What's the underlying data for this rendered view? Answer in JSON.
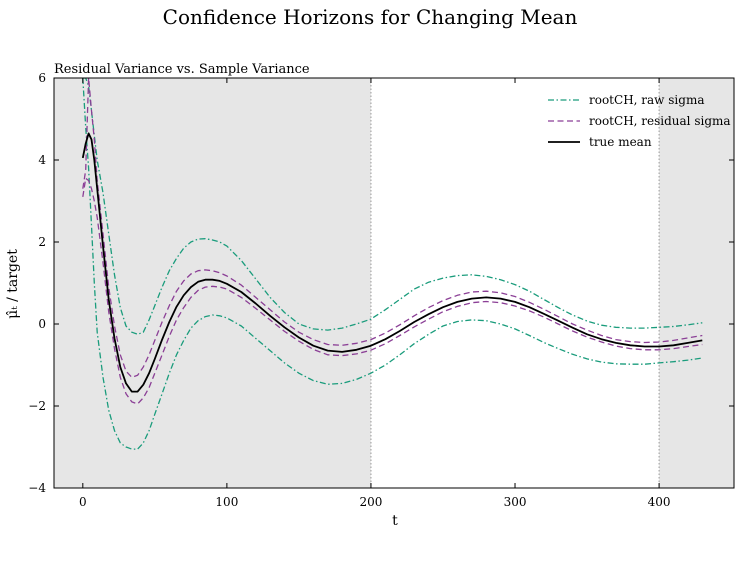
{
  "chart_data": {
    "type": "line",
    "title": "Confidence Horizons for Changing Mean",
    "subtitle": "Residual Variance vs. Sample Variance",
    "xlabel": "t",
    "ylabel": "μ̂ₜ / target",
    "xlim": [
      -20,
      452
    ],
    "ylim": [
      -4,
      6
    ],
    "xticks": [
      0,
      100,
      200,
      300,
      400
    ],
    "yticks": [
      -4,
      -2,
      0,
      2,
      4,
      6
    ],
    "xtick_labels": [
      "0",
      "100",
      "200",
      "300",
      "400"
    ],
    "ytick_labels": [
      "−4",
      "−2",
      "0",
      "2",
      "4",
      "6"
    ],
    "shaded_regions": [
      [
        -20,
        200
      ],
      [
        400,
        452
      ]
    ],
    "vlines": [
      200,
      400
    ],
    "grid": false,
    "legend_position": "top-right",
    "x": [
      0,
      2,
      4,
      6,
      8,
      10,
      14,
      18,
      22,
      26,
      30,
      34,
      38,
      42,
      46,
      50,
      55,
      60,
      65,
      70,
      75,
      80,
      85,
      90,
      95,
      100,
      110,
      120,
      130,
      140,
      150,
      160,
      170,
      180,
      190,
      200,
      210,
      220,
      230,
      240,
      250,
      260,
      270,
      280,
      290,
      300,
      310,
      320,
      330,
      340,
      350,
      360,
      370,
      380,
      390,
      400,
      410,
      420,
      430
    ],
    "series": [
      {
        "name": "rootCH, raw sigma",
        "color": "#1a9c7c",
        "dash": "dashdot",
        "parts": [
          {
            "label": "upper",
            "y": [
              6.0,
              6.0,
              5.8,
              5.2,
              4.6,
              4.0,
              3.2,
              2.2,
              1.2,
              0.4,
              -0.05,
              -0.2,
              -0.25,
              -0.2,
              0.1,
              0.45,
              0.9,
              1.3,
              1.6,
              1.85,
              2.0,
              2.07,
              2.08,
              2.05,
              2.0,
              1.9,
              1.55,
              1.1,
              0.65,
              0.28,
              0.0,
              -0.12,
              -0.15,
              -0.1,
              0.0,
              0.12,
              0.35,
              0.6,
              0.85,
              1.02,
              1.12,
              1.18,
              1.2,
              1.16,
              1.08,
              0.96,
              0.8,
              0.6,
              0.4,
              0.22,
              0.07,
              -0.03,
              -0.08,
              -0.1,
              -0.1,
              -0.08,
              -0.06,
              -0.02,
              0.03
            ]
          },
          {
            "label": "lower",
            "y": [
              6.0,
              4.8,
              3.8,
              2.4,
              1.0,
              -0.2,
              -1.3,
              -2.1,
              -2.6,
              -2.9,
              -3.0,
              -3.05,
              -3.05,
              -2.9,
              -2.6,
              -2.2,
              -1.7,
              -1.2,
              -0.75,
              -0.4,
              -0.1,
              0.08,
              0.18,
              0.22,
              0.2,
              0.15,
              -0.05,
              -0.35,
              -0.65,
              -0.95,
              -1.2,
              -1.38,
              -1.47,
              -1.45,
              -1.35,
              -1.2,
              -1.0,
              -0.75,
              -0.48,
              -0.25,
              -0.05,
              0.06,
              0.1,
              0.08,
              0.0,
              -0.12,
              -0.28,
              -0.45,
              -0.6,
              -0.74,
              -0.85,
              -0.93,
              -0.97,
              -0.98,
              -0.98,
              -0.95,
              -0.92,
              -0.88,
              -0.83
            ]
          }
        ]
      },
      {
        "name": "rootCH, residual sigma",
        "color": "#8b3f96",
        "dash": "dashed",
        "parts": [
          {
            "label": "upper",
            "y": [
              3.3,
              3.75,
              6.0,
              5.2,
              4.5,
              3.5,
              2.2,
              0.9,
              -0.05,
              -0.75,
              -1.15,
              -1.3,
              -1.25,
              -1.05,
              -0.75,
              -0.4,
              0.05,
              0.45,
              0.8,
              1.05,
              1.22,
              1.3,
              1.32,
              1.3,
              1.25,
              1.17,
              0.95,
              0.65,
              0.35,
              0.05,
              -0.2,
              -0.38,
              -0.5,
              -0.52,
              -0.47,
              -0.38,
              -0.22,
              -0.02,
              0.2,
              0.4,
              0.57,
              0.7,
              0.78,
              0.8,
              0.76,
              0.67,
              0.53,
              0.36,
              0.18,
              0.0,
              -0.15,
              -0.28,
              -0.38,
              -0.43,
              -0.45,
              -0.44,
              -0.4,
              -0.34,
              -0.28
            ]
          },
          {
            "label": "lower",
            "y": [
              3.1,
              3.55,
              3.5,
              3.3,
              3.0,
              2.6,
              1.5,
              0.3,
              -0.6,
              -1.3,
              -1.7,
              -1.9,
              -1.95,
              -1.8,
              -1.55,
              -1.2,
              -0.75,
              -0.3,
              0.1,
              0.4,
              0.65,
              0.82,
              0.9,
              0.92,
              0.9,
              0.85,
              0.65,
              0.38,
              0.1,
              -0.18,
              -0.42,
              -0.62,
              -0.75,
              -0.77,
              -0.73,
              -0.64,
              -0.48,
              -0.28,
              -0.07,
              0.12,
              0.3,
              0.43,
              0.52,
              0.55,
              0.52,
              0.44,
              0.32,
              0.17,
              0.0,
              -0.17,
              -0.32,
              -0.44,
              -0.54,
              -0.6,
              -0.63,
              -0.63,
              -0.6,
              -0.55,
              -0.5
            ]
          }
        ]
      },
      {
        "name": "true mean",
        "color": "#000000",
        "dash": "solid",
        "parts": [
          {
            "label": "mean",
            "y": [
              4.05,
              4.4,
              4.65,
              4.5,
              4.0,
              3.3,
              1.9,
              0.6,
              -0.35,
              -1.05,
              -1.45,
              -1.65,
              -1.65,
              -1.48,
              -1.2,
              -0.85,
              -0.38,
              0.05,
              0.42,
              0.7,
              0.9,
              1.03,
              1.08,
              1.08,
              1.05,
              0.98,
              0.78,
              0.5,
              0.2,
              -0.08,
              -0.33,
              -0.53,
              -0.65,
              -0.68,
              -0.63,
              -0.53,
              -0.37,
              -0.17,
              0.05,
              0.24,
              0.41,
              0.54,
              0.62,
              0.65,
              0.62,
              0.54,
              0.41,
              0.25,
              0.08,
              -0.09,
              -0.25,
              -0.37,
              -0.46,
              -0.52,
              -0.55,
              -0.55,
              -0.52,
              -0.46,
              -0.4
            ]
          }
        ]
      }
    ]
  }
}
